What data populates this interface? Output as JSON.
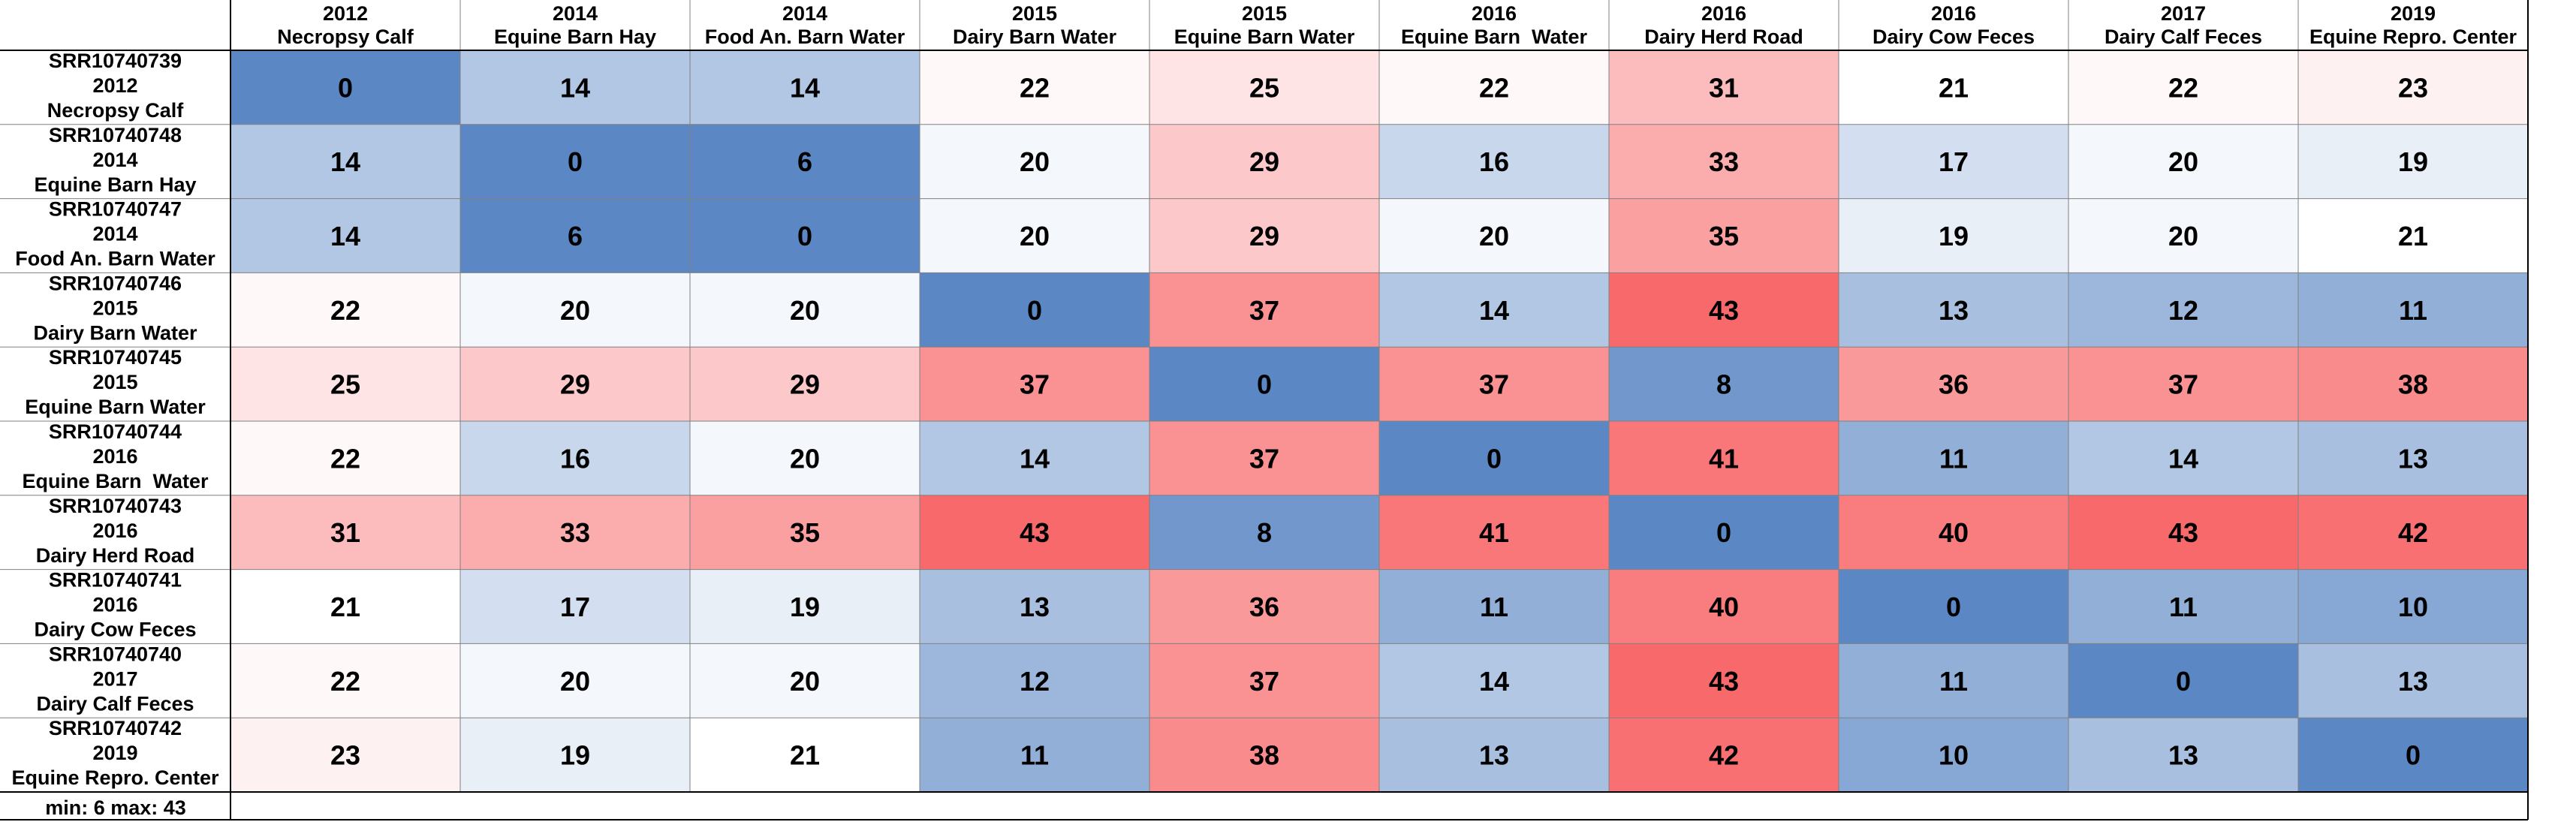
{
  "chart_data": {
    "type": "heatmap",
    "columns": [
      {
        "year": "2012",
        "name": "Necropsy Calf"
      },
      {
        "year": "2014",
        "name": "Equine Barn Hay"
      },
      {
        "year": "2014",
        "name": "Food An. Barn Water"
      },
      {
        "year": "2015",
        "name": "Dairy Barn Water"
      },
      {
        "year": "2015",
        "name": "Equine Barn Water"
      },
      {
        "year": "2016",
        "name": "Equine Barn  Water"
      },
      {
        "year": "2016",
        "name": "Dairy Herd Road"
      },
      {
        "year": "2016",
        "name": "Dairy Cow Feces"
      },
      {
        "year": "2017",
        "name": "Dairy Calf Feces"
      },
      {
        "year": "2019",
        "name": "Equine Repro. Center"
      }
    ],
    "rows": [
      {
        "id": "SRR10740739",
        "year": "2012",
        "name": "Necropsy Calf"
      },
      {
        "id": "SRR10740748",
        "year": "2014",
        "name": "Equine Barn Hay"
      },
      {
        "id": "SRR10740747",
        "year": "2014",
        "name": "Food An. Barn Water"
      },
      {
        "id": "SRR10740746",
        "year": "2015",
        "name": "Dairy Barn Water"
      },
      {
        "id": "SRR10740745",
        "year": "2015",
        "name": "Equine Barn Water"
      },
      {
        "id": "SRR10740744",
        "year": "2016",
        "name": "Equine Barn  Water"
      },
      {
        "id": "SRR10740743",
        "year": "2016",
        "name": "Dairy Herd Road"
      },
      {
        "id": "SRR10740741",
        "year": "2016",
        "name": "Dairy Cow Feces"
      },
      {
        "id": "SRR10740740",
        "year": "2017",
        "name": "Dairy Calf Feces"
      },
      {
        "id": "SRR10740742",
        "year": "2019",
        "name": "Equine Repro. Center"
      }
    ],
    "values": [
      [
        0,
        14,
        14,
        22,
        25,
        22,
        31,
        21,
        22,
        23
      ],
      [
        14,
        0,
        6,
        20,
        29,
        16,
        33,
        17,
        20,
        19
      ],
      [
        14,
        6,
        0,
        20,
        29,
        20,
        35,
        19,
        20,
        21
      ],
      [
        22,
        20,
        20,
        0,
        37,
        14,
        43,
        13,
        12,
        11
      ],
      [
        25,
        29,
        29,
        37,
        0,
        37,
        8,
        36,
        37,
        38
      ],
      [
        22,
        16,
        20,
        14,
        37,
        0,
        41,
        11,
        14,
        13
      ],
      [
        31,
        33,
        35,
        43,
        8,
        41,
        0,
        40,
        43,
        42
      ],
      [
        21,
        17,
        19,
        13,
        36,
        11,
        40,
        0,
        11,
        10
      ],
      [
        22,
        20,
        20,
        12,
        37,
        14,
        43,
        11,
        0,
        13
      ],
      [
        23,
        19,
        21,
        11,
        38,
        13,
        42,
        10,
        13,
        0
      ]
    ],
    "footer": "min: 6 max: 43",
    "colors": {
      "diagonal": "#5b87c5",
      "low": "#5b87c5",
      "mid": "#ffffff",
      "high": "#f8696b"
    }
  }
}
